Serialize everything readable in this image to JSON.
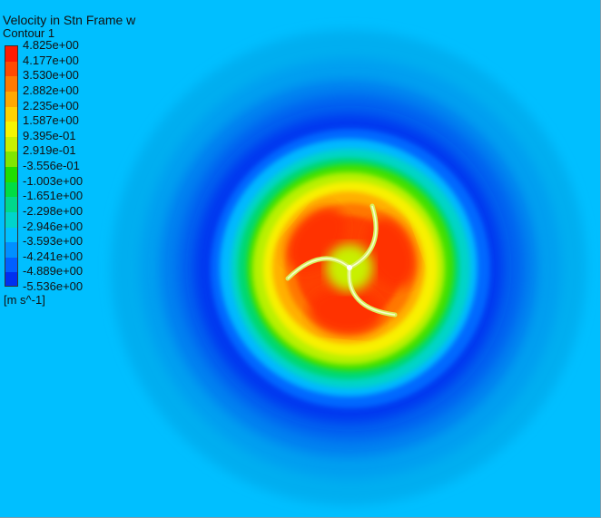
{
  "chart_data": {
    "type": "heatmap",
    "title": "Velocity in Stn Frame w",
    "subtitle": "Contour 1",
    "units": "[m s^-1]",
    "legend": {
      "ticks": [
        "4.825e+00",
        "4.177e+00",
        "3.530e+00",
        "2.882e+00",
        "2.235e+00",
        "1.587e+00",
        "9.395e-01",
        "2.919e-01",
        "-3.556e-01",
        "-1.003e+00",
        "-1.651e+00",
        "-2.298e+00",
        "-2.946e+00",
        "-3.593e+00",
        "-4.241e+00",
        "-4.889e+00",
        "-5.536e+00"
      ],
      "min": -5.536,
      "max": 4.825,
      "colors": [
        "#ff1a00",
        "#ff4a00",
        "#ff7a00",
        "#ffa800",
        "#ffd200",
        "#f5f500",
        "#c8f000",
        "#80e600",
        "#20dd00",
        "#00dd44",
        "#00d88c",
        "#00d4cc",
        "#00c0ff",
        "#0090ff",
        "#0060ff",
        "#0030f0"
      ]
    },
    "field": {
      "description": "radial contour of axial velocity around a three-bladed rotor",
      "rings": [
        {
          "value": -3.2,
          "color": "#00aef0"
        },
        {
          "value": -3.4,
          "color": "#009ff0"
        },
        {
          "value": -3.8,
          "color": "#0080f0"
        },
        {
          "value": -4.3,
          "color": "#0060f0"
        },
        {
          "value": -4.9,
          "color": "#0038f0"
        },
        {
          "value": -4.2,
          "color": "#0068ff"
        },
        {
          "value": -3.0,
          "color": "#00b8ff"
        },
        {
          "value": -1.9,
          "color": "#00d4c8"
        },
        {
          "value": -0.8,
          "color": "#00d870"
        },
        {
          "value": 0.2,
          "color": "#40e000"
        },
        {
          "value": 1.2,
          "color": "#b8f000"
        },
        {
          "value": 2.2,
          "color": "#f8f000"
        },
        {
          "value": 3.1,
          "color": "#ffb000"
        },
        {
          "value": 3.8,
          "color": "#ff7800"
        },
        {
          "value": 4.4,
          "color": "#ff4000"
        }
      ],
      "hub_value": 2.5
    }
  }
}
